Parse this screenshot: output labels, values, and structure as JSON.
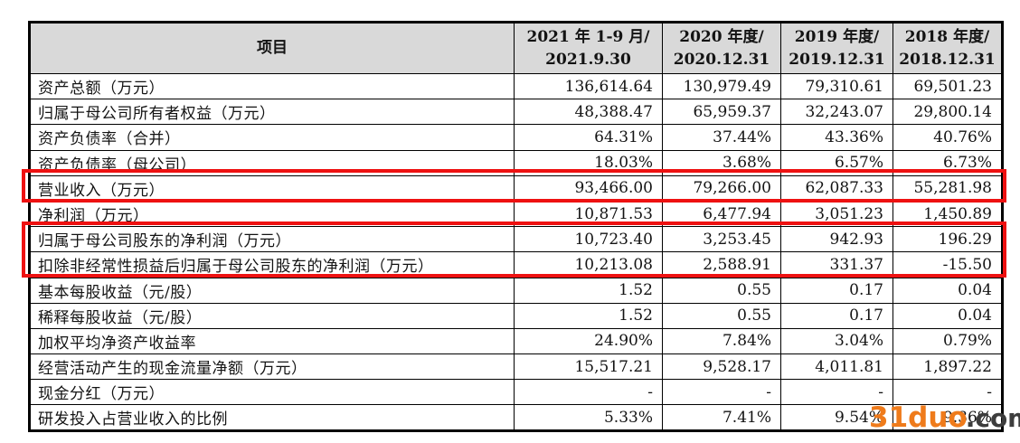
{
  "colors": {
    "header_bg": "#d9d9d9",
    "grid_line": "#000000",
    "highlight_red": "#ee1111",
    "watermark_orange": "#ef7b1b",
    "watermark_gray": "#3d3d3d",
    "text": "#131313"
  },
  "watermark": {
    "brand": "31duo",
    "suffix": ".com"
  },
  "table": {
    "header": {
      "item_label": "项目",
      "cols": [
        {
          "line1": "2021 年 1-9 月/",
          "line2": "2021.9.30"
        },
        {
          "line1": "2020 年度/",
          "line2": "2020.12.31"
        },
        {
          "line1": "2019 年度/",
          "line2": "2019.12.31"
        },
        {
          "line1": "2018 年度/",
          "line2": "2018.12.31"
        }
      ]
    },
    "rows": [
      {
        "label": "资产总额（万元）",
        "values": [
          "136,614.64",
          "130,979.49",
          "79,310.61",
          "69,501.23"
        ],
        "highlighted": false
      },
      {
        "label": "归属于母公司所有者权益（万元）",
        "values": [
          "48,388.47",
          "65,959.37",
          "32,243.07",
          "29,800.14"
        ],
        "highlighted": false
      },
      {
        "label": "资产负债率（合并）",
        "values": [
          "64.31%",
          "37.44%",
          "43.36%",
          "40.76%"
        ],
        "highlighted": false
      },
      {
        "label": "资产负债率（母公司）",
        "values": [
          "18.03%",
          "3.68%",
          "6.57%",
          "6.73%"
        ],
        "highlighted": false
      },
      {
        "label": "营业收入（万元）",
        "values": [
          "93,466.00",
          "79,266.00",
          "62,087.33",
          "55,281.98"
        ],
        "highlighted": true
      },
      {
        "label": "净利润（万元）",
        "values": [
          "10,871.53",
          "6,477.94",
          "3,051.23",
          "1,450.89"
        ],
        "highlighted": false
      },
      {
        "label": "归属于母公司股东的净利润（万元）",
        "values": [
          "10,723.40",
          "3,253.45",
          "942.93",
          "196.29"
        ],
        "highlighted": true
      },
      {
        "label": "扣除非经常性损益后归属于母公司股东的净利润（万元）",
        "values": [
          "10,213.08",
          "2,588.91",
          "331.37",
          "-15.50"
        ],
        "highlighted": true
      },
      {
        "label": "基本每股收益（元/股）",
        "values": [
          "1.52",
          "0.55",
          "0.17",
          "0.04"
        ],
        "highlighted": false
      },
      {
        "label": "稀释每股收益（元/股）",
        "values": [
          "1.52",
          "0.55",
          "0.17",
          "0.04"
        ],
        "highlighted": false
      },
      {
        "label": "加权平均净资产收益率",
        "values": [
          "24.90%",
          "7.84%",
          "3.04%",
          "0.79%"
        ],
        "highlighted": false
      },
      {
        "label": "经营活动产生的现金流量净额（万元）",
        "values": [
          "15,517.21",
          "9,528.17",
          "4,011.81",
          "1,897.22"
        ],
        "highlighted": false
      },
      {
        "label": "现金分红（万元）",
        "values": [
          "-",
          "-",
          "-",
          "-"
        ],
        "highlighted": false
      },
      {
        "label": "研发投入占营业收入的比例",
        "values": [
          "5.33%",
          "7.41%",
          "9.54%",
          "9.36%"
        ],
        "highlighted": false
      }
    ]
  }
}
